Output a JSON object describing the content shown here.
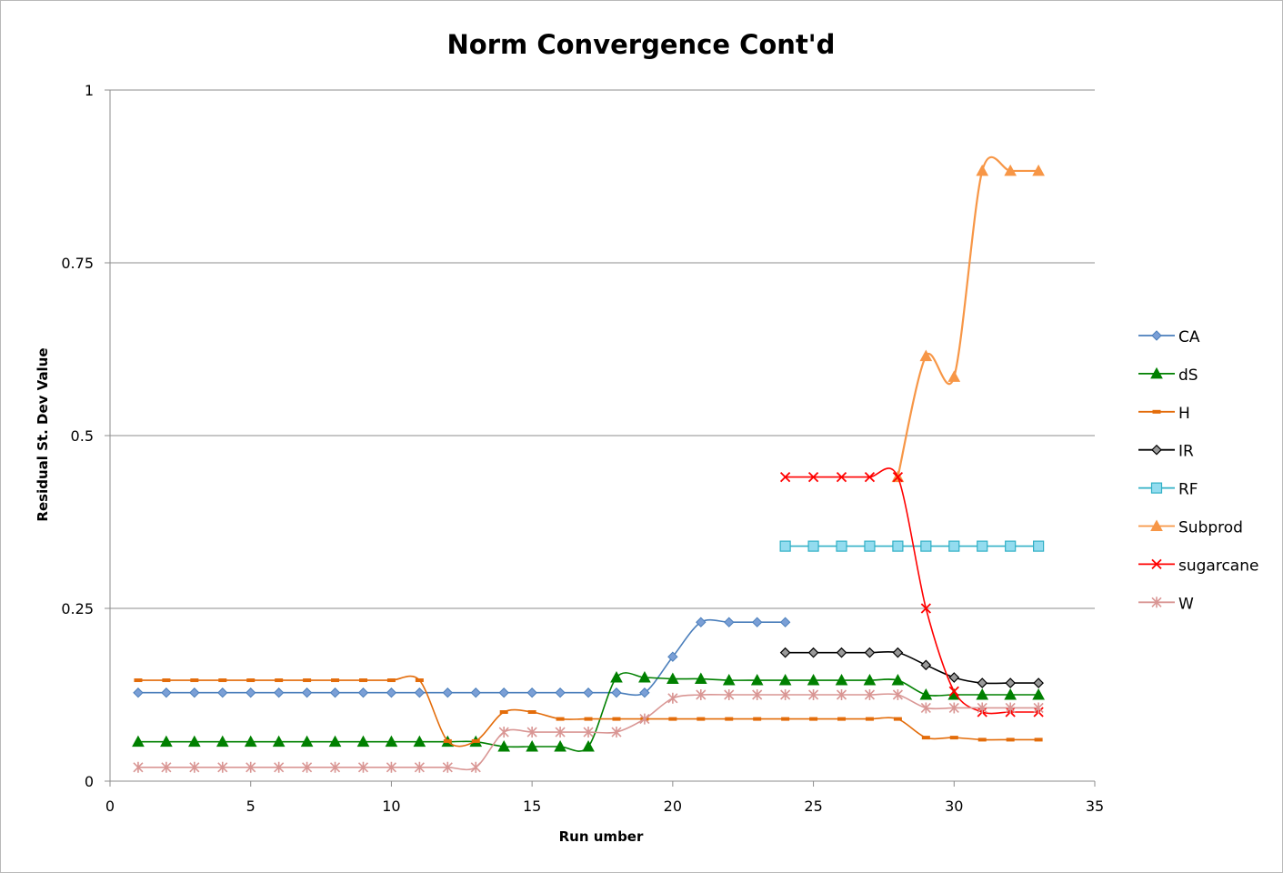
{
  "chart_data": {
    "type": "line",
    "title": "Norm Convergence Cont'd",
    "xlabel": "Run umber",
    "ylabel": "Residual St. Dev Value",
    "xlim": [
      0,
      35
    ],
    "ylim": [
      0,
      1
    ],
    "x_ticks": [
      "0",
      "5",
      "10",
      "15",
      "20",
      "25",
      "30",
      "35"
    ],
    "y_ticks": [
      "0",
      "0.25",
      "0.5",
      "0.75",
      "1"
    ],
    "grid": "horizontal",
    "legend": "right",
    "series": [
      {
        "name": "CA",
        "color": "#4a7ebb",
        "marker": "diamond",
        "points": [
          [
            1,
            0.128
          ],
          [
            2,
            0.128
          ],
          [
            3,
            0.128
          ],
          [
            4,
            0.128
          ],
          [
            5,
            0.128
          ],
          [
            6,
            0.128
          ],
          [
            7,
            0.128
          ],
          [
            8,
            0.128
          ],
          [
            9,
            0.128
          ],
          [
            10,
            0.128
          ],
          [
            11,
            0.128
          ],
          [
            12,
            0.128
          ],
          [
            13,
            0.128
          ],
          [
            14,
            0.128
          ],
          [
            15,
            0.128
          ],
          [
            16,
            0.128
          ],
          [
            17,
            0.128
          ],
          [
            18,
            0.128
          ],
          [
            19,
            0.128
          ],
          [
            20,
            0.18
          ],
          [
            21,
            0.23
          ],
          [
            22,
            0.23
          ],
          [
            23,
            0.23
          ],
          [
            24,
            0.23
          ]
        ]
      },
      {
        "name": "dS",
        "color": "#008000",
        "marker": "triangle",
        "points": [
          [
            1,
            0.057
          ],
          [
            2,
            0.057
          ],
          [
            3,
            0.057
          ],
          [
            4,
            0.057
          ],
          [
            5,
            0.057
          ],
          [
            6,
            0.057
          ],
          [
            7,
            0.057
          ],
          [
            8,
            0.057
          ],
          [
            9,
            0.057
          ],
          [
            10,
            0.057
          ],
          [
            11,
            0.057
          ],
          [
            12,
            0.057
          ],
          [
            13,
            0.057
          ],
          [
            14,
            0.05
          ],
          [
            15,
            0.05
          ],
          [
            16,
            0.05
          ],
          [
            17,
            0.05
          ],
          [
            18,
            0.15
          ],
          [
            19,
            0.15
          ],
          [
            20,
            0.148
          ],
          [
            21,
            0.148
          ],
          [
            22,
            0.146
          ],
          [
            23,
            0.146
          ],
          [
            24,
            0.146
          ],
          [
            25,
            0.146
          ],
          [
            26,
            0.146
          ],
          [
            27,
            0.146
          ],
          [
            28,
            0.146
          ],
          [
            29,
            0.125
          ],
          [
            30,
            0.125
          ],
          [
            31,
            0.125
          ],
          [
            32,
            0.125
          ],
          [
            33,
            0.125
          ]
        ]
      },
      {
        "name": "H",
        "color": "#e36c0a",
        "marker": "dash",
        "points": [
          [
            1,
            0.146
          ],
          [
            2,
            0.146
          ],
          [
            3,
            0.146
          ],
          [
            4,
            0.146
          ],
          [
            5,
            0.146
          ],
          [
            6,
            0.146
          ],
          [
            7,
            0.146
          ],
          [
            8,
            0.146
          ],
          [
            9,
            0.146
          ],
          [
            10,
            0.146
          ],
          [
            11,
            0.146
          ],
          [
            12,
            0.058
          ],
          [
            13,
            0.058
          ],
          [
            14,
            0.1
          ],
          [
            15,
            0.1
          ],
          [
            16,
            0.09
          ],
          [
            17,
            0.09
          ],
          [
            18,
            0.09
          ],
          [
            19,
            0.09
          ],
          [
            20,
            0.09
          ],
          [
            21,
            0.09
          ],
          [
            22,
            0.09
          ],
          [
            23,
            0.09
          ],
          [
            24,
            0.09
          ],
          [
            25,
            0.09
          ],
          [
            26,
            0.09
          ],
          [
            27,
            0.09
          ],
          [
            28,
            0.09
          ],
          [
            29,
            0.063
          ],
          [
            30,
            0.063
          ],
          [
            31,
            0.06
          ],
          [
            32,
            0.06
          ],
          [
            33,
            0.06
          ]
        ]
      },
      {
        "name": "IR",
        "color": "#000000",
        "marker": "diamond-gray",
        "points": [
          [
            24,
            0.186
          ],
          [
            25,
            0.186
          ],
          [
            26,
            0.186
          ],
          [
            27,
            0.186
          ],
          [
            28,
            0.186
          ],
          [
            29,
            0.168
          ],
          [
            30,
            0.15
          ],
          [
            31,
            0.142
          ],
          [
            32,
            0.142
          ],
          [
            33,
            0.142
          ]
        ]
      },
      {
        "name": "RF",
        "color": "#31b0c6",
        "marker": "square",
        "points": [
          [
            24,
            0.34
          ],
          [
            25,
            0.34
          ],
          [
            26,
            0.34
          ],
          [
            27,
            0.34
          ],
          [
            28,
            0.34
          ],
          [
            29,
            0.34
          ],
          [
            30,
            0.34
          ],
          [
            31,
            0.34
          ],
          [
            32,
            0.34
          ],
          [
            33,
            0.34
          ]
        ]
      },
      {
        "name": "Subprod",
        "color": "#f79646",
        "marker": "triangle",
        "points": [
          [
            28,
            0.44
          ],
          [
            29,
            0.615
          ],
          [
            30,
            0.585
          ],
          [
            31,
            0.883
          ],
          [
            32,
            0.883
          ],
          [
            33,
            0.883
          ]
        ]
      },
      {
        "name": "sugarcane",
        "color": "#ff0000",
        "marker": "x",
        "points": [
          [
            24,
            0.44
          ],
          [
            25,
            0.44
          ],
          [
            26,
            0.44
          ],
          [
            27,
            0.44
          ],
          [
            28,
            0.44
          ],
          [
            29,
            0.25
          ],
          [
            30,
            0.13
          ],
          [
            31,
            0.1
          ],
          [
            32,
            0.1
          ],
          [
            33,
            0.1
          ]
        ]
      },
      {
        "name": "W",
        "color": "#d99694",
        "marker": "star",
        "points": [
          [
            1,
            0.02
          ],
          [
            2,
            0.02
          ],
          [
            3,
            0.02
          ],
          [
            4,
            0.02
          ],
          [
            5,
            0.02
          ],
          [
            6,
            0.02
          ],
          [
            7,
            0.02
          ],
          [
            8,
            0.02
          ],
          [
            9,
            0.02
          ],
          [
            10,
            0.02
          ],
          [
            11,
            0.02
          ],
          [
            12,
            0.02
          ],
          [
            13,
            0.02
          ],
          [
            14,
            0.071
          ],
          [
            15,
            0.071
          ],
          [
            16,
            0.071
          ],
          [
            17,
            0.071
          ],
          [
            18,
            0.071
          ],
          [
            19,
            0.09
          ],
          [
            20,
            0.12
          ],
          [
            21,
            0.125
          ],
          [
            22,
            0.125
          ],
          [
            23,
            0.125
          ],
          [
            24,
            0.125
          ],
          [
            25,
            0.125
          ],
          [
            26,
            0.125
          ],
          [
            27,
            0.125
          ],
          [
            28,
            0.125
          ],
          [
            29,
            0.106
          ],
          [
            30,
            0.106
          ],
          [
            31,
            0.106
          ],
          [
            32,
            0.106
          ],
          [
            33,
            0.106
          ]
        ]
      }
    ]
  }
}
